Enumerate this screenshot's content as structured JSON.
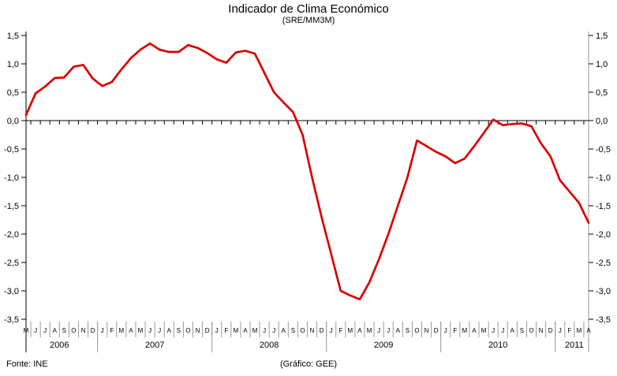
{
  "chart_data": {
    "type": "line",
    "title": "Indicador de Clima Económico",
    "subtitle": "(SRE/MM3M)",
    "footer_left": "Fonte: INE",
    "footer_center": "(Gráfico: GEE)",
    "ylim": [
      -3.5,
      1.5
    ],
    "ytick_step": 0.5,
    "ytick_labels": [
      "1,5",
      "1,0",
      "0,5",
      "0,0",
      "-0,5",
      "-1,0",
      "-1,5",
      "-2,0",
      "-2,5",
      "-3,0",
      "-3,5"
    ],
    "line_color": "#d90000",
    "axis_color": "#000000",
    "divider_color": "#999999",
    "grid": "off",
    "legend": "none",
    "years_axis": [
      {
        "year": "2006",
        "letters": [
          "M",
          "J",
          "J",
          "A",
          "S",
          "O",
          "N",
          "D"
        ]
      },
      {
        "year": "2007",
        "letters": [
          "J",
          "F",
          "M",
          "A",
          "M",
          "J",
          "J",
          "A",
          "S",
          "O",
          "N",
          "D"
        ]
      },
      {
        "year": "2008",
        "letters": [
          "J",
          "F",
          "M",
          "A",
          "M",
          "J",
          "J",
          "A",
          "S",
          "O",
          "N",
          "D"
        ]
      },
      {
        "year": "2009",
        "letters": [
          "J",
          "F",
          "M",
          "A",
          "M",
          "J",
          "J",
          "A",
          "S",
          "O",
          "N",
          "D"
        ]
      },
      {
        "year": "2010",
        "letters": [
          "J",
          "F",
          "M",
          "A",
          "M",
          "J",
          "J",
          "A",
          "S",
          "O",
          "N",
          "D"
        ]
      },
      {
        "year": "2011",
        "letters": [
          "J",
          "F",
          "M",
          "A"
        ]
      }
    ],
    "series": [
      {
        "name": "Indicador de Clima Económico (SRE/MM3M)",
        "start": "2006-05",
        "values": [
          0.1,
          0.48,
          0.6,
          0.75,
          0.76,
          0.95,
          0.98,
          0.74,
          0.61,
          0.68,
          0.9,
          1.1,
          1.25,
          1.36,
          1.25,
          1.21,
          1.21,
          1.33,
          1.28,
          1.19,
          1.08,
          1.02,
          1.2,
          1.23,
          1.18,
          0.84,
          0.5,
          0.32,
          0.15,
          -0.25,
          -1.0,
          -1.7,
          -2.35,
          -3.0,
          -3.08,
          -3.15,
          -2.85,
          -2.45,
          -2.0,
          -1.5,
          -1.0,
          -0.35,
          -0.45,
          -0.55,
          -0.63,
          -0.75,
          -0.67,
          -0.45,
          -0.22,
          0.02,
          -0.08,
          -0.06,
          -0.05,
          -0.1,
          -0.4,
          -0.63,
          -1.05,
          -1.25,
          -1.45,
          -1.8
        ]
      }
    ]
  }
}
